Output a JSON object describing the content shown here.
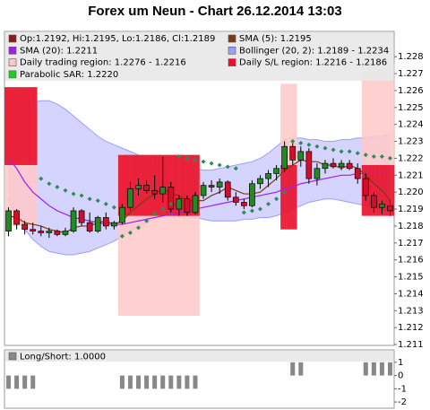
{
  "chart_data": [
    {
      "type": "candlestick",
      "title": "Forex um Neun - Chart 26.12.2014 13:03",
      "name": "Op:1.2192, Hi:1.2195, Lo:1.2186, Cl:1.2189",
      "legend_color": "#8b1a1a",
      "up_color": "#1e8c1e",
      "down_color": "#d0102a",
      "open": [
        1.2177,
        1.2189,
        1.2181,
        1.2178,
        1.2177,
        1.2176,
        1.2177,
        1.2175,
        1.2177,
        1.2189,
        1.2182,
        1.2177,
        1.2185,
        1.218,
        1.2182,
        1.2191,
        1.2202,
        1.2204,
        1.2201,
        1.2199,
        1.2203,
        1.219,
        1.2196,
        1.2188,
        1.2198,
        1.2204,
        1.2203,
        1.2206,
        1.2197,
        1.2194,
        1.2192,
        1.2205,
        1.2208,
        1.2211,
        1.2214,
        1.2227,
        1.2219,
        1.2224,
        1.2208,
        1.2214,
        1.2217,
        1.2215,
        1.2217,
        1.2214,
        1.2208,
        1.2198,
        1.2191,
        1.2192
      ],
      "high": [
        1.2191,
        1.219,
        1.2183,
        1.2182,
        1.218,
        1.2179,
        1.2178,
        1.2179,
        1.2191,
        1.219,
        1.2188,
        1.2186,
        1.2188,
        1.2183,
        1.2193,
        1.2206,
        1.2208,
        1.2207,
        1.221,
        1.2221,
        1.2206,
        1.2198,
        1.2198,
        1.22,
        1.2206,
        1.2207,
        1.2208,
        1.2207,
        1.22,
        1.2196,
        1.2207,
        1.221,
        1.2213,
        1.2216,
        1.223,
        1.223,
        1.2227,
        1.2226,
        1.2217,
        1.2219,
        1.222,
        1.2219,
        1.2219,
        1.2217,
        1.2211,
        1.22,
        1.2195,
        1.2195
      ],
      "low": [
        1.2174,
        1.2178,
        1.2175,
        1.2175,
        1.2174,
        1.2173,
        1.2174,
        1.2174,
        1.2176,
        1.218,
        1.2176,
        1.2176,
        1.2178,
        1.2178,
        1.2181,
        1.2189,
        1.2198,
        1.2199,
        1.2196,
        1.2194,
        1.2188,
        1.2186,
        1.2186,
        1.2187,
        1.2196,
        1.22,
        1.2199,
        1.2195,
        1.2192,
        1.219,
        1.2191,
        1.2202,
        1.2203,
        1.2207,
        1.2212,
        1.2216,
        1.2215,
        1.2205,
        1.2204,
        1.2211,
        1.2214,
        1.2213,
        1.2213,
        1.2205,
        1.2195,
        1.2188,
        1.2187,
        1.2186
      ],
      "close": [
        1.2189,
        1.2181,
        1.2178,
        1.2177,
        1.2176,
        1.2177,
        1.2175,
        1.2177,
        1.2189,
        1.2182,
        1.2177,
        1.2185,
        1.218,
        1.2182,
        1.2191,
        1.2202,
        1.2204,
        1.2201,
        1.2199,
        1.2203,
        1.219,
        1.2196,
        1.2188,
        1.2198,
        1.2204,
        1.2203,
        1.2206,
        1.2197,
        1.2194,
        1.2192,
        1.2205,
        1.2208,
        1.2211,
        1.2214,
        1.2227,
        1.2219,
        1.2224,
        1.2208,
        1.2214,
        1.2217,
        1.2215,
        1.2217,
        1.2214,
        1.2208,
        1.2198,
        1.2191,
        1.2193,
        1.2189
      ],
      "regions": [
        {
          "name": "Daily trading region: 1.2276 - 1.2216",
          "color": "#ffc8c8",
          "high": [
            1.2262,
            1.2262,
            1.2262,
            1.2262,
            null,
            null,
            null,
            null,
            null,
            null,
            null,
            null,
            null,
            null,
            1.2222,
            1.2222,
            1.2222,
            1.2222,
            1.2222,
            1.2222,
            1.2222,
            1.2222,
            1.2222,
            1.2222,
            null,
            null,
            null,
            null,
            null,
            null,
            null,
            null,
            null,
            null,
            1.2264,
            1.2264,
            null,
            null,
            null,
            null,
            null,
            null,
            null,
            null,
            1.2276,
            1.2276,
            1.2276,
            1.2276
          ],
          "low": [
            1.218,
            1.218,
            1.218,
            1.218,
            null,
            null,
            null,
            null,
            null,
            null,
            null,
            null,
            null,
            null,
            1.2127,
            1.2127,
            1.2127,
            1.2127,
            1.2127,
            1.2127,
            1.2127,
            1.2127,
            1.2127,
            1.2127,
            null,
            null,
            null,
            null,
            null,
            null,
            null,
            null,
            null,
            null,
            1.2216,
            1.2216,
            null,
            null,
            null,
            null,
            null,
            null,
            null,
            null,
            1.2216,
            1.2216,
            1.2216,
            1.2216
          ]
        },
        {
          "name": "Daily S/L region: 1.2216 - 1.2186",
          "color": "#e8102a",
          "high": [
            1.2262,
            1.2262,
            1.2262,
            1.2262,
            null,
            null,
            null,
            null,
            null,
            null,
            null,
            null,
            null,
            null,
            1.2222,
            1.2222,
            1.2222,
            1.2222,
            1.2222,
            1.2222,
            1.2222,
            1.2222,
            1.2222,
            1.2222,
            null,
            null,
            null,
            null,
            null,
            null,
            null,
            null,
            null,
            null,
            1.2216,
            1.2216,
            null,
            null,
            null,
            null,
            null,
            null,
            null,
            null,
            1.2216,
            1.2216,
            1.2216,
            1.2216
          ],
          "low": [
            1.2216,
            1.2216,
            1.2216,
            1.2216,
            null,
            null,
            null,
            null,
            null,
            null,
            null,
            null,
            null,
            null,
            1.2186,
            1.2186,
            1.2186,
            1.2186,
            1.2186,
            1.2186,
            1.2186,
            1.2186,
            1.2186,
            1.2186,
            null,
            null,
            null,
            null,
            null,
            null,
            null,
            null,
            null,
            null,
            1.2178,
            1.2178,
            null,
            null,
            null,
            null,
            null,
            null,
            null,
            null,
            1.2186,
            1.2186,
            1.2186,
            1.2186
          ]
        }
      ],
      "bands": {
        "name": "Bollinger (20, 2): 1.2189 - 1.2234",
        "color": "#ccccff",
        "line_color": "#9d9dff",
        "upper": [
          1.2244,
          1.2248,
          1.2251,
          1.2253,
          1.2254,
          1.2254,
          1.2252,
          1.2249,
          1.2245,
          1.2241,
          1.2237,
          1.2233,
          1.223,
          1.2228,
          1.2226,
          1.2224,
          1.2222,
          1.222,
          1.2218,
          1.2217,
          1.2216,
          1.2215,
          1.2214,
          1.2214,
          1.2213,
          1.2213,
          1.2214,
          1.2215,
          1.2216,
          1.2217,
          1.2218,
          1.222,
          1.2223,
          1.2227,
          1.2231,
          1.2232,
          1.2232,
          1.2231,
          1.2231,
          1.223,
          1.223,
          1.2231,
          1.2231,
          1.2232,
          1.2232,
          1.2233,
          1.2233,
          1.2234
        ],
        "lower": [
          1.2196,
          1.2186,
          1.2178,
          1.2172,
          1.2168,
          1.2165,
          1.2164,
          1.2163,
          1.2163,
          1.2164,
          1.2165,
          1.2167,
          1.2169,
          1.2171,
          1.2174,
          1.2177,
          1.218,
          1.2182,
          1.2184,
          1.2185,
          1.2186,
          1.2186,
          1.2186,
          1.2185,
          1.2184,
          1.2183,
          1.2183,
          1.2183,
          1.2183,
          1.2184,
          1.2184,
          1.2185,
          1.2185,
          1.2186,
          1.2188,
          1.219,
          1.2192,
          1.2194,
          1.2195,
          1.2196,
          1.2196,
          1.2195,
          1.2194,
          1.2193,
          1.2192,
          1.2191,
          1.219,
          1.2189
        ]
      },
      "series": [
        {
          "name": "SMA (5): 1.2195",
          "color": "#7a3b12",
          "values": [
            1.2186,
            1.2185,
            1.2182,
            1.2181,
            1.218,
            1.2178,
            1.2177,
            1.2176,
            1.2179,
            1.218,
            1.218,
            1.2182,
            1.2183,
            1.2181,
            1.2183,
            1.2188,
            1.2192,
            1.2196,
            1.2199,
            1.2202,
            1.2199,
            1.2198,
            1.2195,
            1.2195,
            1.2195,
            1.2198,
            1.22,
            1.2203,
            1.2201,
            1.2199,
            1.2199,
            1.22,
            1.2204,
            1.2208,
            1.2213,
            1.2216,
            1.2219,
            1.2218,
            1.2218,
            1.2216,
            1.2216,
            1.2214,
            1.2216,
            1.2214,
            1.221,
            1.2205,
            1.2201,
            1.2195
          ]
        },
        {
          "name": "SMA (20): 1.2211",
          "color": "#a020f0",
          "values": [
            1.222,
            1.2214,
            1.2206,
            1.22,
            1.2196,
            1.2192,
            1.2189,
            1.2187,
            1.2185,
            1.2184,
            1.2183,
            1.2182,
            1.2181,
            1.2181,
            1.2181,
            1.2182,
            1.2183,
            1.2184,
            1.2185,
            1.2186,
            1.2187,
            1.2188,
            1.2189,
            1.219,
            1.2191,
            1.2192,
            1.2193,
            1.2194,
            1.2195,
            1.2196,
            1.2197,
            1.2198,
            1.2199,
            1.22,
            1.2202,
            1.2203,
            1.2205,
            1.2206,
            1.2207,
            1.2208,
            1.2209,
            1.221,
            1.221,
            1.2211,
            1.2211,
            1.2211,
            1.2211,
            1.2211
          ]
        }
      ],
      "sar": {
        "name": "Parabolic SAR: 1.2220",
        "color": "#2e8b57",
        "values": [
          null,
          null,
          null,
          null,
          1.2208,
          1.2205,
          1.2203,
          1.2201,
          1.2199,
          1.2198,
          1.2196,
          1.2195,
          1.2193,
          1.2191,
          1.2174,
          1.2176,
          1.2179,
          1.2183,
          1.2187,
          1.219,
          1.2193,
          1.2221,
          1.222,
          1.2219,
          1.2218,
          1.2217,
          1.2216,
          1.2215,
          1.2214,
          1.2188,
          1.2189,
          1.219,
          1.2193,
          1.2196,
          1.22,
          1.223,
          1.2229,
          1.2228,
          1.2227,
          1.2226,
          1.2225,
          1.2224,
          1.2224,
          1.2223,
          1.2222,
          1.2221,
          1.2221,
          1.222
        ]
      },
      "ylim": [
        1.21095,
        1.22944
      ],
      "yticks": [
        1.211,
        1.212,
        1.213,
        1.214,
        1.215,
        1.216,
        1.217,
        1.218,
        1.219,
        {
          "value": 1.22,
          "label": "1.220"
        },
        1.221,
        1.222,
        1.223,
        1.224,
        1.225,
        1.226,
        1.227,
        1.228
      ]
    },
    {
      "type": "bar",
      "name": "Long/Short: 1.0000",
      "color": "#888888",
      "values": [
        -1,
        -1,
        -1,
        -1,
        0,
        0,
        0,
        0,
        0,
        0,
        0,
        0,
        0,
        0,
        -1,
        -1,
        -1,
        -1,
        -1,
        -1,
        -1,
        -1,
        -1,
        -1,
        0,
        0,
        0,
        0,
        0,
        0,
        0,
        0,
        0,
        0,
        0,
        1,
        1,
        0,
        0,
        0,
        0,
        0,
        0,
        0,
        1,
        1,
        1,
        1
      ],
      "ylim": [
        -2.47,
        1.87
      ],
      "yticks": [
        1,
        0,
        -1,
        -2
      ]
    }
  ]
}
